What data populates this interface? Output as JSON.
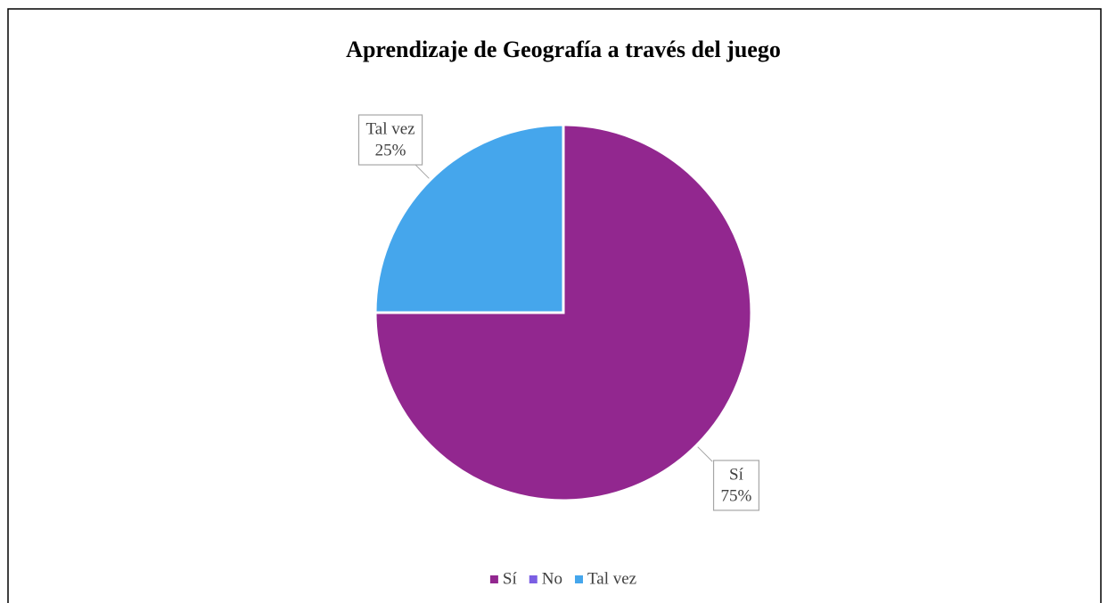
{
  "chart_data": {
    "type": "pie",
    "title": "Aprendizaje de Geografía a través del juego",
    "categories": [
      "Sí",
      "No",
      "Tal vez"
    ],
    "values": [
      75,
      0,
      25
    ],
    "value_labels": [
      "75%",
      null,
      "25%"
    ],
    "colors": [
      "#92278f",
      "#7b5fe3",
      "#45a6ec"
    ],
    "legend": "bottom"
  }
}
